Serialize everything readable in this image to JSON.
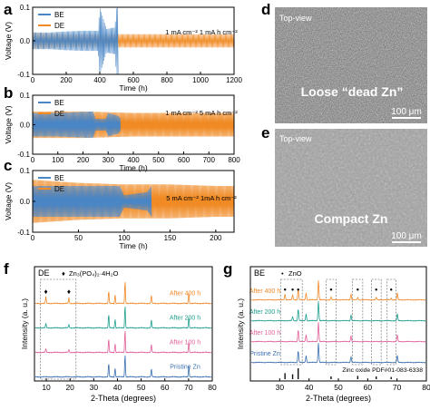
{
  "figure": {
    "panel_letters": [
      "a",
      "b",
      "c",
      "d",
      "e",
      "f",
      "g"
    ]
  },
  "colors": {
    "BE": "#4a86c6",
    "DE": "#f08a24",
    "after_400": "#f0892a",
    "after_200": "#1e9e8e",
    "after_100": "#e0609a",
    "pristine": "#3a6fb0",
    "pdf": "#111111",
    "sem_d": "#808080",
    "sem_e": "#9a9a9a"
  },
  "chart_data": [
    {
      "panel": "a",
      "type": "line",
      "ylabel": "Voltage (V)",
      "xlabel": "Time (h)",
      "xlim": [
        0,
        1200
      ],
      "ylim": [
        -0.1,
        0.1
      ],
      "xticks": [
        "0",
        "200",
        "400",
        "600",
        "800",
        "1000",
        "1200"
      ],
      "yticks": [
        "-0.1",
        "0.0",
        "0.1"
      ],
      "condition": "1 mA cm⁻²  1 mA h cm⁻²",
      "series": [
        {
          "name": "BE",
          "x": [
            0,
            100,
            200,
            300,
            390,
            400,
            440,
            490,
            500,
            510
          ],
          "amplitude": [
            0.025,
            0.025,
            0.028,
            0.03,
            0.03,
            0.1,
            0.035,
            0.04,
            0.1,
            0.1
          ]
        },
        {
          "name": "DE",
          "x": [
            0,
            200,
            400,
            600,
            800,
            1000,
            1200
          ],
          "amplitude": [
            0.025,
            0.02,
            0.02,
            0.02,
            0.02,
            0.02,
            0.02
          ]
        }
      ]
    },
    {
      "panel": "b",
      "type": "line",
      "ylabel": "Voltage (V)",
      "xlabel": "Time (h)",
      "xlim": [
        0,
        800
      ],
      "ylim": [
        -0.1,
        0.1
      ],
      "xticks": [
        "0",
        "100",
        "200",
        "300",
        "400",
        "500",
        "600",
        "700",
        "800"
      ],
      "yticks": [
        "-0.1",
        "0.0",
        "0.1"
      ],
      "condition": "1 mA cm⁻²  5 mA h cm⁻²",
      "series": [
        {
          "name": "BE",
          "x": [
            0,
            100,
            240,
            250,
            290,
            300,
            340,
            350
          ],
          "amplitude": [
            0.04,
            0.04,
            0.045,
            0.02,
            0.02,
            0.04,
            0.03,
            0.02
          ]
        },
        {
          "name": "DE",
          "x": [
            0,
            200,
            400,
            600,
            800
          ],
          "amplitude": [
            0.045,
            0.045,
            0.04,
            0.04,
            0.04
          ]
        }
      ]
    },
    {
      "panel": "c",
      "type": "line",
      "ylabel": "Voltage (V)",
      "xlabel": "Time (h)",
      "xlim": [
        0,
        220
      ],
      "ylim": [
        -0.1,
        0.1
      ],
      "xticks": [
        "0",
        "50",
        "100",
        "150",
        "200"
      ],
      "yticks": [
        "-0.1",
        "0.0",
        "0.1"
      ],
      "condition": "5 mA cm⁻²  1mA h cm⁻²",
      "series": [
        {
          "name": "BE",
          "x": [
            0,
            50,
            95,
            100,
            125,
            130
          ],
          "amplitude": [
            0.05,
            0.05,
            0.05,
            0.02,
            0.03,
            0.05
          ]
        },
        {
          "name": "DE",
          "x": [
            0,
            50,
            100,
            150,
            200,
            220
          ],
          "amplitude": [
            0.07,
            0.06,
            0.055,
            0.055,
            0.05,
            0.05
          ]
        }
      ]
    },
    {
      "panel": "f",
      "type": "line",
      "title": "DE",
      "ylabel": "Intensity (a. u.)",
      "xlabel": "2-Theta (degrees)",
      "xlim": [
        5,
        80
      ],
      "xticks": [
        "10",
        "20",
        "30",
        "40",
        "50",
        "60",
        "70",
        "80"
      ],
      "legend_marker": "♦",
      "legend_label": "Zn₃(PO₄)₂·4H₂O",
      "marked_peaks": [
        9.8,
        19.5
      ],
      "series": [
        {
          "name": "After 400 h",
          "peaks": [
            [
              9.8,
              0.3
            ],
            [
              19.5,
              0.25
            ],
            [
              36.3,
              0.55
            ],
            [
              39.0,
              0.4
            ],
            [
              43.2,
              1.0
            ],
            [
              54.3,
              0.35
            ],
            [
              70.1,
              0.5
            ]
          ]
        },
        {
          "name": "After 200 h",
          "peaks": [
            [
              9.8,
              0.2
            ],
            [
              19.5,
              0.15
            ],
            [
              36.3,
              0.6
            ],
            [
              39.0,
              0.4
            ],
            [
              43.2,
              1.0
            ],
            [
              54.3,
              0.35
            ],
            [
              70.1,
              0.5
            ]
          ]
        },
        {
          "name": "After 100 h",
          "peaks": [
            [
              9.8,
              0.15
            ],
            [
              19.5,
              0.12
            ],
            [
              36.3,
              0.6
            ],
            [
              39.0,
              0.4
            ],
            [
              43.2,
              1.0
            ],
            [
              54.3,
              0.35
            ],
            [
              70.1,
              0.5
            ]
          ]
        },
        {
          "name": "Pristine Zn",
          "peaks": [
            [
              36.3,
              0.6
            ],
            [
              39.0,
              0.4
            ],
            [
              43.2,
              1.0
            ],
            [
              54.3,
              0.35
            ],
            [
              70.1,
              0.5
            ]
          ]
        }
      ]
    },
    {
      "panel": "g",
      "type": "line",
      "title": "BE",
      "ylabel": "Intensity (a. u.)",
      "xlabel": "2-Theta (degrees)",
      "xlim": [
        20,
        80
      ],
      "xticks": [
        "30",
        "40",
        "50",
        "60",
        "70",
        "80"
      ],
      "legend_marker": "•",
      "legend_label": "ZnO",
      "reference_label": "Zinc oxide PDF#01-083-6338",
      "marked_peaks": [
        31.8,
        34.4,
        36.3,
        47.5,
        56.6,
        62.9,
        68.0
      ],
      "series": [
        {
          "name": "After 400 h",
          "peaks": [
            [
              31.8,
              0.3
            ],
            [
              34.4,
              0.25
            ],
            [
              36.3,
              0.55
            ],
            [
              39.0,
              0.35
            ],
            [
              43.2,
              1.0
            ],
            [
              47.5,
              0.15
            ],
            [
              54.3,
              0.3
            ],
            [
              56.6,
              0.12
            ],
            [
              62.9,
              0.12
            ],
            [
              68.0,
              0.1
            ],
            [
              70.1,
              0.35
            ]
          ]
        },
        {
          "name": "After 200 h",
          "peaks": [
            [
              34.4,
              0.2
            ],
            [
              36.3,
              0.6
            ],
            [
              39.0,
              0.35
            ],
            [
              43.2,
              1.0
            ],
            [
              54.3,
              0.3
            ],
            [
              70.1,
              0.35
            ]
          ]
        },
        {
          "name": "After 100 h",
          "peaks": [
            [
              36.3,
              0.6
            ],
            [
              39.0,
              0.35
            ],
            [
              43.2,
              1.0
            ],
            [
              54.3,
              0.3
            ],
            [
              70.1,
              0.35
            ]
          ]
        },
        {
          "name": "Pristine Zn",
          "peaks": [
            [
              36.3,
              0.6
            ],
            [
              39.0,
              0.35
            ],
            [
              43.2,
              1.0
            ],
            [
              54.3,
              0.3
            ],
            [
              70.1,
              0.35
            ]
          ]
        }
      ],
      "reference_peaks": [
        [
          31.8,
          0.55
        ],
        [
          34.4,
          0.45
        ],
        [
          36.3,
          1.0
        ],
        [
          47.5,
          0.25
        ],
        [
          56.6,
          0.3
        ],
        [
          62.9,
          0.25
        ],
        [
          68.0,
          0.2
        ]
      ]
    }
  ],
  "sem": [
    {
      "panel": "d",
      "tag": "Top-view",
      "caption": "Loose “dead Zn”",
      "scale": "100 μm"
    },
    {
      "panel": "e",
      "tag": "Top-view",
      "caption": "Compact Zn",
      "scale": "100 μm"
    }
  ]
}
